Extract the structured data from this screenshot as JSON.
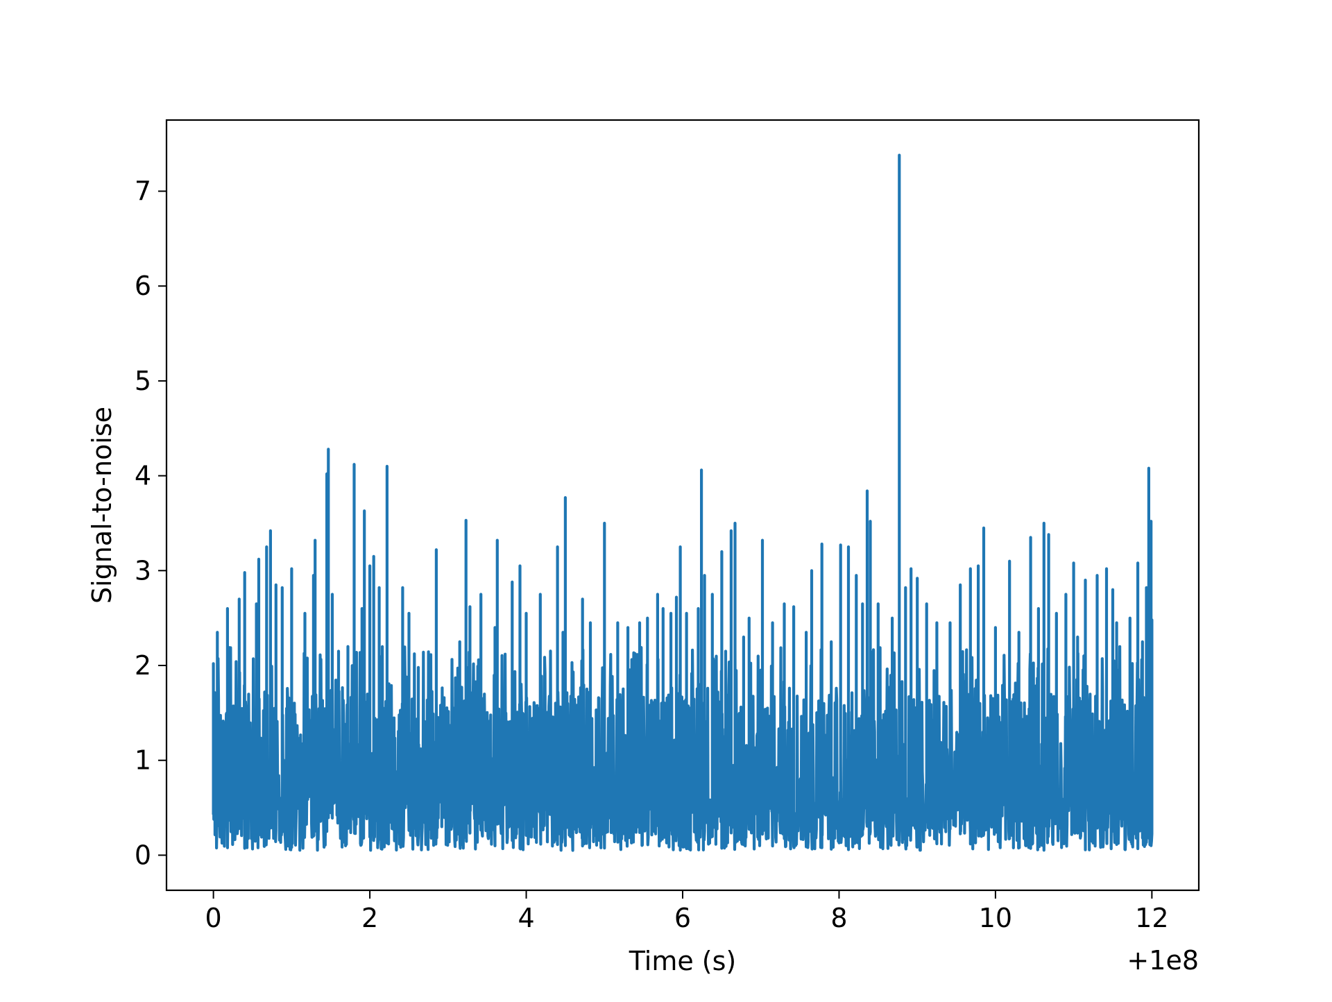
{
  "chart_data": {
    "type": "line",
    "title": "",
    "xlabel": "Time (s)",
    "ylabel": "Signal-to-noise",
    "x_offset_label": "+1e8",
    "xlim": [
      -0.6,
      12.6
    ],
    "ylim": [
      -0.37,
      7.75
    ],
    "x_ticks": [
      0,
      2,
      4,
      6,
      8,
      10,
      12
    ],
    "y_ticks": [
      0,
      1,
      2,
      3,
      4,
      5,
      6,
      7
    ],
    "grid": false,
    "line_color": "#1f77b4",
    "series": [
      {
        "peaks": [
          {
            "x": 0.0,
            "y": 2.02
          },
          {
            "x": 0.05,
            "y": 2.35
          },
          {
            "x": 0.18,
            "y": 2.6
          },
          {
            "x": 0.33,
            "y": 2.7
          },
          {
            "x": 0.4,
            "y": 2.98
          },
          {
            "x": 0.55,
            "y": 2.65
          },
          {
            "x": 0.58,
            "y": 3.12
          },
          {
            "x": 0.68,
            "y": 3.25
          },
          {
            "x": 0.73,
            "y": 3.42
          },
          {
            "x": 0.8,
            "y": 2.85
          },
          {
            "x": 0.88,
            "y": 2.82
          },
          {
            "x": 1.0,
            "y": 3.02
          },
          {
            "x": 1.17,
            "y": 2.55
          },
          {
            "x": 1.28,
            "y": 2.95
          },
          {
            "x": 1.3,
            "y": 3.32
          },
          {
            "x": 1.45,
            "y": 4.02
          },
          {
            "x": 1.47,
            "y": 4.28
          },
          {
            "x": 1.52,
            "y": 2.75
          },
          {
            "x": 1.6,
            "y": 2.15
          },
          {
            "x": 1.72,
            "y": 2.2
          },
          {
            "x": 1.8,
            "y": 4.12
          },
          {
            "x": 1.9,
            "y": 2.6
          },
          {
            "x": 1.93,
            "y": 3.63
          },
          {
            "x": 2.0,
            "y": 3.05
          },
          {
            "x": 2.05,
            "y": 3.15
          },
          {
            "x": 2.12,
            "y": 2.82
          },
          {
            "x": 2.22,
            "y": 4.1
          },
          {
            "x": 2.42,
            "y": 2.82
          },
          {
            "x": 2.5,
            "y": 2.55
          },
          {
            "x": 2.62,
            "y": 1.98
          },
          {
            "x": 2.85,
            "y": 3.22
          },
          {
            "x": 3.15,
            "y": 2.25
          },
          {
            "x": 3.23,
            "y": 3.53
          },
          {
            "x": 3.28,
            "y": 2.62
          },
          {
            "x": 3.42,
            "y": 2.75
          },
          {
            "x": 3.6,
            "y": 2.4
          },
          {
            "x": 3.63,
            "y": 3.32
          },
          {
            "x": 3.82,
            "y": 2.88
          },
          {
            "x": 3.92,
            "y": 3.05
          },
          {
            "x": 4.0,
            "y": 2.55
          },
          {
            "x": 4.18,
            "y": 2.75
          },
          {
            "x": 4.4,
            "y": 3.25
          },
          {
            "x": 4.47,
            "y": 2.35
          },
          {
            "x": 4.5,
            "y": 3.77
          },
          {
            "x": 4.72,
            "y": 2.7
          },
          {
            "x": 4.82,
            "y": 2.45
          },
          {
            "x": 5.0,
            "y": 3.5
          },
          {
            "x": 5.17,
            "y": 2.45
          },
          {
            "x": 5.3,
            "y": 2.4
          },
          {
            "x": 5.45,
            "y": 2.45
          },
          {
            "x": 5.55,
            "y": 2.5
          },
          {
            "x": 5.68,
            "y": 2.75
          },
          {
            "x": 5.75,
            "y": 2.6
          },
          {
            "x": 5.85,
            "y": 2.55
          },
          {
            "x": 5.92,
            "y": 2.72
          },
          {
            "x": 5.97,
            "y": 3.25
          },
          {
            "x": 6.05,
            "y": 2.55
          },
          {
            "x": 6.2,
            "y": 2.6
          },
          {
            "x": 6.24,
            "y": 4.06
          },
          {
            "x": 6.28,
            "y": 2.95
          },
          {
            "x": 6.38,
            "y": 2.75
          },
          {
            "x": 6.5,
            "y": 3.2
          },
          {
            "x": 6.55,
            "y": 2.15
          },
          {
            "x": 6.62,
            "y": 3.42
          },
          {
            "x": 6.67,
            "y": 3.5
          },
          {
            "x": 6.78,
            "y": 2.3
          },
          {
            "x": 6.85,
            "y": 2.5
          },
          {
            "x": 7.02,
            "y": 3.32
          },
          {
            "x": 7.15,
            "y": 2.45
          },
          {
            "x": 7.3,
            "y": 2.65
          },
          {
            "x": 7.42,
            "y": 2.62
          },
          {
            "x": 7.58,
            "y": 2.35
          },
          {
            "x": 7.65,
            "y": 3.0
          },
          {
            "x": 7.78,
            "y": 3.28
          },
          {
            "x": 7.9,
            "y": 2.25
          },
          {
            "x": 8.02,
            "y": 3.27
          },
          {
            "x": 8.12,
            "y": 3.25
          },
          {
            "x": 8.22,
            "y": 2.95
          },
          {
            "x": 8.3,
            "y": 2.65
          },
          {
            "x": 8.36,
            "y": 3.84
          },
          {
            "x": 8.4,
            "y": 3.52
          },
          {
            "x": 8.5,
            "y": 2.65
          },
          {
            "x": 8.68,
            "y": 2.5
          },
          {
            "x": 8.77,
            "y": 7.38
          },
          {
            "x": 8.85,
            "y": 2.82
          },
          {
            "x": 8.92,
            "y": 3.02
          },
          {
            "x": 9.0,
            "y": 2.92
          },
          {
            "x": 9.12,
            "y": 2.65
          },
          {
            "x": 9.25,
            "y": 2.45
          },
          {
            "x": 9.42,
            "y": 2.45
          },
          {
            "x": 9.55,
            "y": 2.85
          },
          {
            "x": 9.68,
            "y": 3.02
          },
          {
            "x": 9.78,
            "y": 3.05
          },
          {
            "x": 9.85,
            "y": 3.45
          },
          {
            "x": 10.0,
            "y": 2.4
          },
          {
            "x": 10.18,
            "y": 3.1
          },
          {
            "x": 10.3,
            "y": 2.35
          },
          {
            "x": 10.45,
            "y": 3.35
          },
          {
            "x": 10.55,
            "y": 2.6
          },
          {
            "x": 10.62,
            "y": 3.5
          },
          {
            "x": 10.68,
            "y": 3.38
          },
          {
            "x": 10.78,
            "y": 2.55
          },
          {
            "x": 10.9,
            "y": 2.75
          },
          {
            "x": 11.0,
            "y": 3.08
          },
          {
            "x": 11.05,
            "y": 2.3
          },
          {
            "x": 11.15,
            "y": 2.9
          },
          {
            "x": 11.3,
            "y": 2.95
          },
          {
            "x": 11.42,
            "y": 3.02
          },
          {
            "x": 11.5,
            "y": 2.8
          },
          {
            "x": 11.55,
            "y": 2.45
          },
          {
            "x": 11.72,
            "y": 2.5
          },
          {
            "x": 11.82,
            "y": 3.08
          },
          {
            "x": 11.88,
            "y": 2.25
          },
          {
            "x": 11.93,
            "y": 2.82
          },
          {
            "x": 11.96,
            "y": 4.08
          },
          {
            "x": 11.99,
            "y": 3.52
          },
          {
            "x": 12.0,
            "y": 2.48
          }
        ],
        "baseline_band": [
          0.05,
          1.7
        ]
      }
    ]
  }
}
